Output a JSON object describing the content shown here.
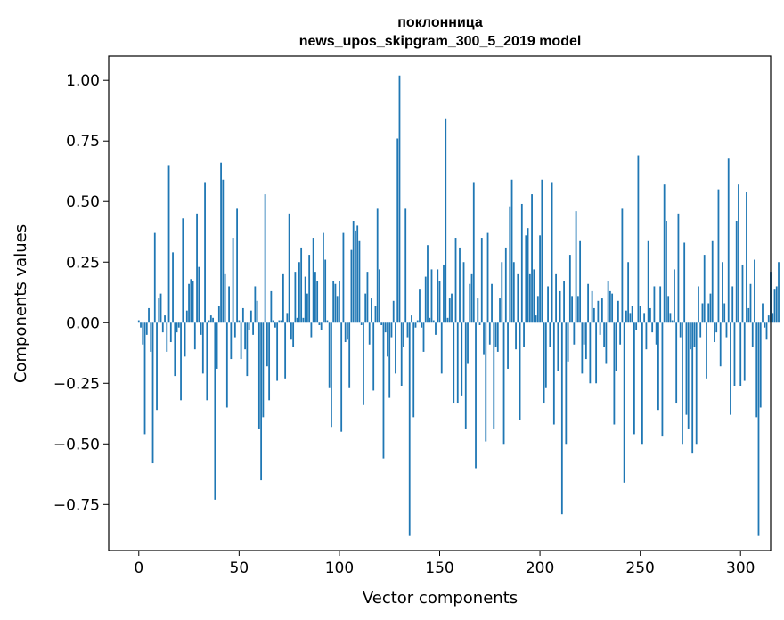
{
  "chart_data": {
    "type": "bar",
    "title": "поклонница",
    "subtitle": "news_upos_skipgram_300_5_2019 model",
    "xlabel": "Vector components",
    "ylabel": "Components values",
    "xlim": [
      -15,
      315
    ],
    "ylim": [
      -0.94,
      1.1
    ],
    "x_ticks": [
      0,
      50,
      100,
      150,
      200,
      250,
      300
    ],
    "x_tick_labels": [
      "0",
      "50",
      "100",
      "150",
      "200",
      "250",
      "300"
    ],
    "y_ticks": [
      1.0,
      0.75,
      0.5,
      0.25,
      0.0,
      -0.25,
      -0.5,
      -0.75
    ],
    "y_tick_labels": [
      "1.00",
      "0.75",
      "0.50",
      "0.25",
      "0.00",
      "−0.25",
      "−0.50",
      "−0.75"
    ],
    "bar_color": "#1f77b4",
    "grid": false,
    "values": [
      0.01,
      -0.02,
      -0.09,
      -0.46,
      -0.05,
      0.06,
      -0.12,
      -0.58,
      0.37,
      -0.36,
      0.1,
      0.12,
      -0.04,
      0.03,
      -0.12,
      0.65,
      -0.08,
      0.29,
      -0.22,
      -0.04,
      -0.02,
      -0.32,
      0.43,
      -0.14,
      0.05,
      0.16,
      0.18,
      0.17,
      -0.11,
      0.45,
      0.23,
      -0.05,
      -0.21,
      0.58,
      -0.32,
      0.01,
      0.03,
      0.02,
      -0.73,
      -0.19,
      0.07,
      0.66,
      0.59,
      0.2,
      -0.35,
      0.15,
      -0.15,
      0.35,
      -0.06,
      0.47,
      0.01,
      -0.15,
      0.06,
      -0.11,
      -0.22,
      -0.03,
      0.05,
      -0.05,
      0.15,
      0.09,
      -0.44,
      -0.65,
      -0.39,
      0.53,
      -0.18,
      -0.32,
      0.13,
      0.01,
      -0.02,
      -0.24,
      0.01,
      0.01,
      0.2,
      -0.23,
      0.04,
      0.45,
      -0.07,
      -0.1,
      0.21,
      0.02,
      0.25,
      0.31,
      0.02,
      0.19,
      0.12,
      0.28,
      -0.06,
      0.35,
      0.21,
      0.17,
      -0.01,
      -0.03,
      0.37,
      0.26,
      0.01,
      -0.27,
      -0.43,
      0.17,
      0.16,
      0.11,
      0.17,
      -0.45,
      0.37,
      -0.08,
      -0.07,
      -0.27,
      0.3,
      0.42,
      0.38,
      0.4,
      0.34,
      -0.01,
      -0.34,
      0.12,
      0.21,
      -0.09,
      0.1,
      -0.28,
      0.07,
      0.47,
      0.22,
      -0.01,
      -0.56,
      -0.04,
      -0.14,
      -0.31,
      -0.06,
      0.09,
      -0.21,
      0.76,
      1.02,
      -0.26,
      -0.1,
      0.47,
      -0.06,
      -0.88,
      0.03,
      -0.39,
      -0.02,
      0.01,
      0.14,
      -0.02,
      -0.12,
      0.19,
      0.32,
      0.02,
      0.22,
      0.01,
      -0.05,
      0.22,
      0.17,
      -0.21,
      0.24,
      0.84,
      0.02,
      0.1,
      0.12,
      -0.33,
      0.35,
      -0.33,
      0.31,
      -0.3,
      0.25,
      -0.44,
      -0.17,
      0.16,
      0.2,
      0.58,
      -0.6,
      0.1,
      -0.01,
      0.35,
      -0.13,
      -0.49,
      0.37,
      -0.09,
      0.16,
      -0.44,
      -0.1,
      -0.12,
      0.1,
      0.25,
      -0.5,
      0.31,
      -0.19,
      0.48,
      0.59,
      0.25,
      -0.11,
      0.2,
      -0.4,
      0.49,
      -0.1,
      0.36,
      0.39,
      0.2,
      0.53,
      0.22,
      0.03,
      0.11,
      0.36,
      0.59,
      -0.33,
      -0.27,
      0.15,
      -0.1,
      0.58,
      -0.42,
      0.2,
      -0.2,
      0.13,
      -0.79,
      0.17,
      -0.5,
      -0.16,
      0.28,
      0.11,
      -0.09,
      0.46,
      0.11,
      0.34,
      -0.21,
      -0.09,
      -0.15,
      0.16,
      -0.25,
      0.13,
      0.06,
      -0.25,
      0.09,
      -0.05,
      0.1,
      -0.1,
      -0.17,
      0.17,
      0.13,
      0.12,
      -0.42,
      -0.2,
      0.09,
      -0.09,
      0.47,
      -0.66,
      0.05,
      0.25,
      0.04,
      0.07,
      -0.46,
      -0.03,
      0.69,
      0.07,
      -0.5,
      0.04,
      -0.11,
      0.34,
      0.06,
      -0.04,
      0.15,
      -0.09,
      -0.36,
      0.15,
      -0.47,
      0.57,
      0.42,
      0.11,
      0.04,
      0.01,
      0.22,
      -0.33,
      0.45,
      -0.06,
      -0.5,
      0.33,
      -0.38,
      -0.44,
      -0.11,
      -0.54,
      -0.1,
      -0.5,
      0.15,
      -0.06,
      0.08,
      0.28,
      -0.23,
      0.08,
      0.12,
      0.34,
      -0.08,
      -0.04,
      0.55,
      -0.18,
      0.25,
      0.08,
      -0.06,
      0.68,
      -0.38,
      0.15,
      -0.26,
      0.42,
      0.57,
      -0.26,
      0.24,
      -0.24,
      0.54,
      0.06,
      0.16,
      -0.1,
      0.26,
      -0.39,
      -0.88,
      -0.35,
      0.08,
      -0.02,
      -0.07,
      0.03,
      0.21,
      0.04,
      0.14,
      0.15,
      0.25
    ]
  }
}
